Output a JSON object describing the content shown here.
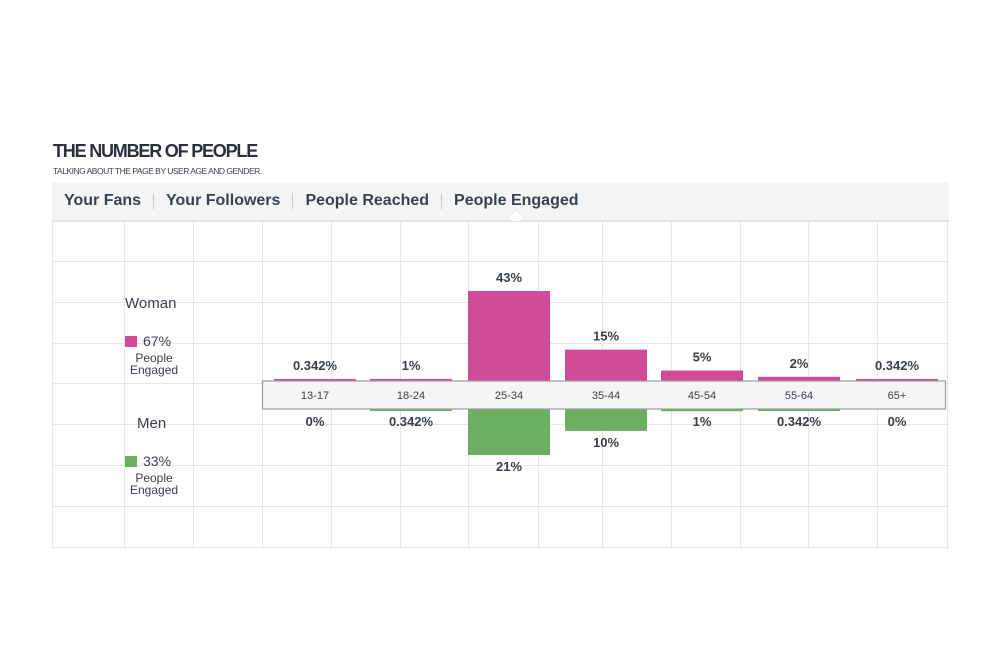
{
  "title": "THE NUMBER OF PEOPLE",
  "subtitle": "TALKING ABOUT THE PAGE BY USER AGE AND GENDER.",
  "tabs": [
    "Your Fans",
    "Your Followers",
    "People Reached",
    "People Engaged"
  ],
  "active_tab": "People Engaged",
  "colors": {
    "woman": "#d14b98",
    "men": "#6caf62",
    "grid": "#e6e6e6"
  },
  "legend": {
    "woman": {
      "label": "Woman",
      "pct": "67%",
      "desc_line1": "People",
      "desc_line2": "Engaged"
    },
    "men": {
      "label": "Men",
      "pct": "33%",
      "desc_line1": "People",
      "desc_line2": "Engaged"
    }
  },
  "chart_data": {
    "type": "bar",
    "categories": [
      "13-17",
      "18-24",
      "25-34",
      "35-44",
      "45-54",
      "55-64",
      "65+"
    ],
    "series": [
      {
        "name": "Woman",
        "values": [
          0.342,
          1,
          43,
          15,
          5,
          2,
          0.342
        ],
        "labels": [
          "0.342%",
          "1%",
          "43%",
          "15%",
          "5%",
          "2%",
          "0.342%"
        ]
      },
      {
        "name": "Men",
        "values": [
          0,
          0.342,
          21,
          10,
          1,
          0.342,
          0
        ],
        "labels": [
          "0%",
          "0.342%",
          "21%",
          "10%",
          "1%",
          "0.342%",
          "0%"
        ]
      }
    ],
    "grid": true
  }
}
